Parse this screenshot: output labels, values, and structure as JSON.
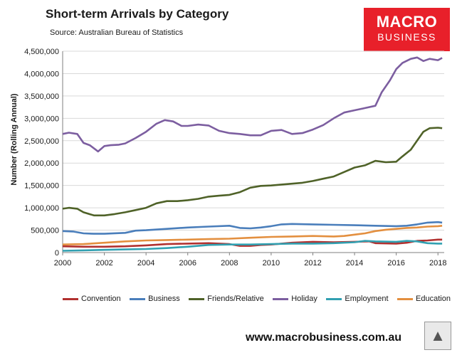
{
  "header": {
    "title": "Short-term Arrivals by Category",
    "source": "Source: Australian Bureau of Statistics"
  },
  "logo": {
    "line1": "MACRO",
    "line2": "BUSINESS"
  },
  "footer": {
    "url": "www.macrobusiness.com.au"
  },
  "colors": {
    "Convention": "#b1302f",
    "Business": "#4a7ebb",
    "Friends/Relative": "#4f6228",
    "Holiday": "#7c5ea0",
    "Employment": "#31a0b1",
    "Education": "#e38f3f"
  },
  "chart_data": {
    "type": "line",
    "title": "Short-term Arrivals by Category",
    "xlabel": "",
    "ylabel": "Number (Rolling Annual)",
    "xlim": [
      2000,
      2018.3
    ],
    "ylim": [
      0,
      4500000
    ],
    "x_ticks": [
      2000,
      2002,
      2004,
      2006,
      2008,
      2010,
      2012,
      2014,
      2016,
      2018
    ],
    "x_tick_labels": [
      "2000",
      "2002",
      "2004",
      "2006",
      "2008",
      "2010",
      "2012",
      "2014",
      "2016",
      "2018"
    ],
    "y_ticks": [
      0,
      500000,
      1000000,
      1500000,
      2000000,
      2500000,
      3000000,
      3500000,
      4000000,
      4500000
    ],
    "y_tick_labels": [
      "0",
      "500,000",
      "1,000,000",
      "1,500,000",
      "2,000,000",
      "2,500,000",
      "3,000,000",
      "3,500,000",
      "4,000,000",
      "4,500,000"
    ],
    "grid": "horizontal",
    "legend": "bottom",
    "series": [
      {
        "name": "Convention",
        "x": [
          2000,
          2001,
          2002,
          2003,
          2004,
          2005,
          2006,
          2007,
          2008,
          2008.5,
          2009,
          2009.5,
          2010,
          2011,
          2012,
          2013,
          2014,
          2014.7,
          2015,
          2016,
          2016.5,
          2017,
          2017.5,
          2018,
          2018.2
        ],
        "values": [
          140000,
          130000,
          130000,
          140000,
          160000,
          190000,
          200000,
          210000,
          190000,
          150000,
          150000,
          170000,
          180000,
          220000,
          240000,
          230000,
          240000,
          250000,
          210000,
          200000,
          220000,
          260000,
          270000,
          290000,
          290000
        ]
      },
      {
        "name": "Business",
        "x": [
          2000,
          2000.5,
          2001,
          2001.5,
          2002,
          2003,
          2003.5,
          2004,
          2005,
          2006,
          2007,
          2008,
          2008.5,
          2009,
          2009.5,
          2010,
          2010.5,
          2011,
          2012,
          2013,
          2014,
          2015,
          2016,
          2016.5,
          2017,
          2017.5,
          2018,
          2018.2
        ],
        "values": [
          480000,
          470000,
          430000,
          420000,
          420000,
          440000,
          490000,
          500000,
          530000,
          560000,
          580000,
          600000,
          550000,
          540000,
          560000,
          590000,
          630000,
          640000,
          630000,
          620000,
          610000,
          600000,
          590000,
          600000,
          630000,
          670000,
          680000,
          670000
        ]
      },
      {
        "name": "Friends/Relative",
        "x": [
          2000,
          2000.3,
          2000.7,
          2001,
          2001.5,
          2002,
          2002.5,
          2003,
          2003.5,
          2004,
          2004.5,
          2005,
          2005.5,
          2006,
          2006.5,
          2007,
          2007.5,
          2008,
          2008.5,
          2009,
          2009.5,
          2010,
          2010.5,
          2011,
          2011.5,
          2012,
          2012.5,
          2013,
          2013.5,
          2014,
          2014.5,
          2015,
          2015.5,
          2016,
          2016.3,
          2016.7,
          2017,
          2017.3,
          2017.6,
          2018,
          2018.2
        ],
        "values": [
          980000,
          1000000,
          980000,
          900000,
          830000,
          830000,
          860000,
          900000,
          950000,
          1000000,
          1100000,
          1150000,
          1150000,
          1170000,
          1200000,
          1250000,
          1270000,
          1290000,
          1350000,
          1450000,
          1490000,
          1500000,
          1520000,
          1540000,
          1560000,
          1600000,
          1650000,
          1700000,
          1800000,
          1900000,
          1950000,
          2050000,
          2020000,
          2030000,
          2150000,
          2300000,
          2500000,
          2700000,
          2780000,
          2790000,
          2780000
        ]
      },
      {
        "name": "Holiday",
        "x": [
          2000,
          2000.3,
          2000.7,
          2001,
          2001.3,
          2001.7,
          2002,
          2002.3,
          2002.7,
          2003,
          2003.5,
          2004,
          2004.5,
          2004.9,
          2005.3,
          2005.7,
          2006,
          2006.5,
          2007,
          2007.5,
          2008,
          2008.5,
          2009,
          2009.5,
          2010,
          2010.5,
          2011,
          2011.5,
          2012,
          2012.5,
          2013,
          2013.5,
          2014,
          2014.5,
          2015,
          2015.3,
          2015.7,
          2016,
          2016.3,
          2016.7,
          2017,
          2017.3,
          2017.6,
          2018,
          2018.2
        ],
        "values": [
          2650000,
          2680000,
          2650000,
          2450000,
          2400000,
          2260000,
          2380000,
          2400000,
          2410000,
          2440000,
          2560000,
          2700000,
          2880000,
          2960000,
          2930000,
          2830000,
          2830000,
          2860000,
          2840000,
          2720000,
          2670000,
          2650000,
          2620000,
          2620000,
          2720000,
          2740000,
          2650000,
          2670000,
          2750000,
          2850000,
          3000000,
          3130000,
          3180000,
          3230000,
          3280000,
          3580000,
          3850000,
          4100000,
          4240000,
          4330000,
          4360000,
          4280000,
          4330000,
          4300000,
          4350000
        ]
      },
      {
        "name": "Employment",
        "x": [
          2000,
          2001,
          2002,
          2003,
          2004,
          2005,
          2006,
          2007,
          2008,
          2009,
          2010,
          2011,
          2012,
          2013,
          2014,
          2014.5,
          2015,
          2016,
          2016.5,
          2017,
          2017.5,
          2018,
          2018.2
        ],
        "values": [
          40000,
          50000,
          60000,
          70000,
          80000,
          100000,
          130000,
          170000,
          180000,
          180000,
          190000,
          200000,
          200000,
          210000,
          230000,
          260000,
          250000,
          240000,
          260000,
          250000,
          210000,
          200000,
          200000
        ]
      },
      {
        "name": "Education",
        "x": [
          2000,
          2001,
          2002,
          2003,
          2004,
          2005,
          2006,
          2007,
          2008,
          2009,
          2010,
          2011,
          2012,
          2013,
          2013.5,
          2014,
          2014.5,
          2015,
          2015.5,
          2016,
          2016.5,
          2017,
          2017.5,
          2018,
          2018.2
        ],
        "values": [
          180000,
          190000,
          220000,
          250000,
          270000,
          280000,
          290000,
          300000,
          310000,
          330000,
          350000,
          360000,
          370000,
          360000,
          370000,
          400000,
          430000,
          480000,
          510000,
          530000,
          550000,
          560000,
          580000,
          590000,
          600000
        ]
      }
    ]
  }
}
